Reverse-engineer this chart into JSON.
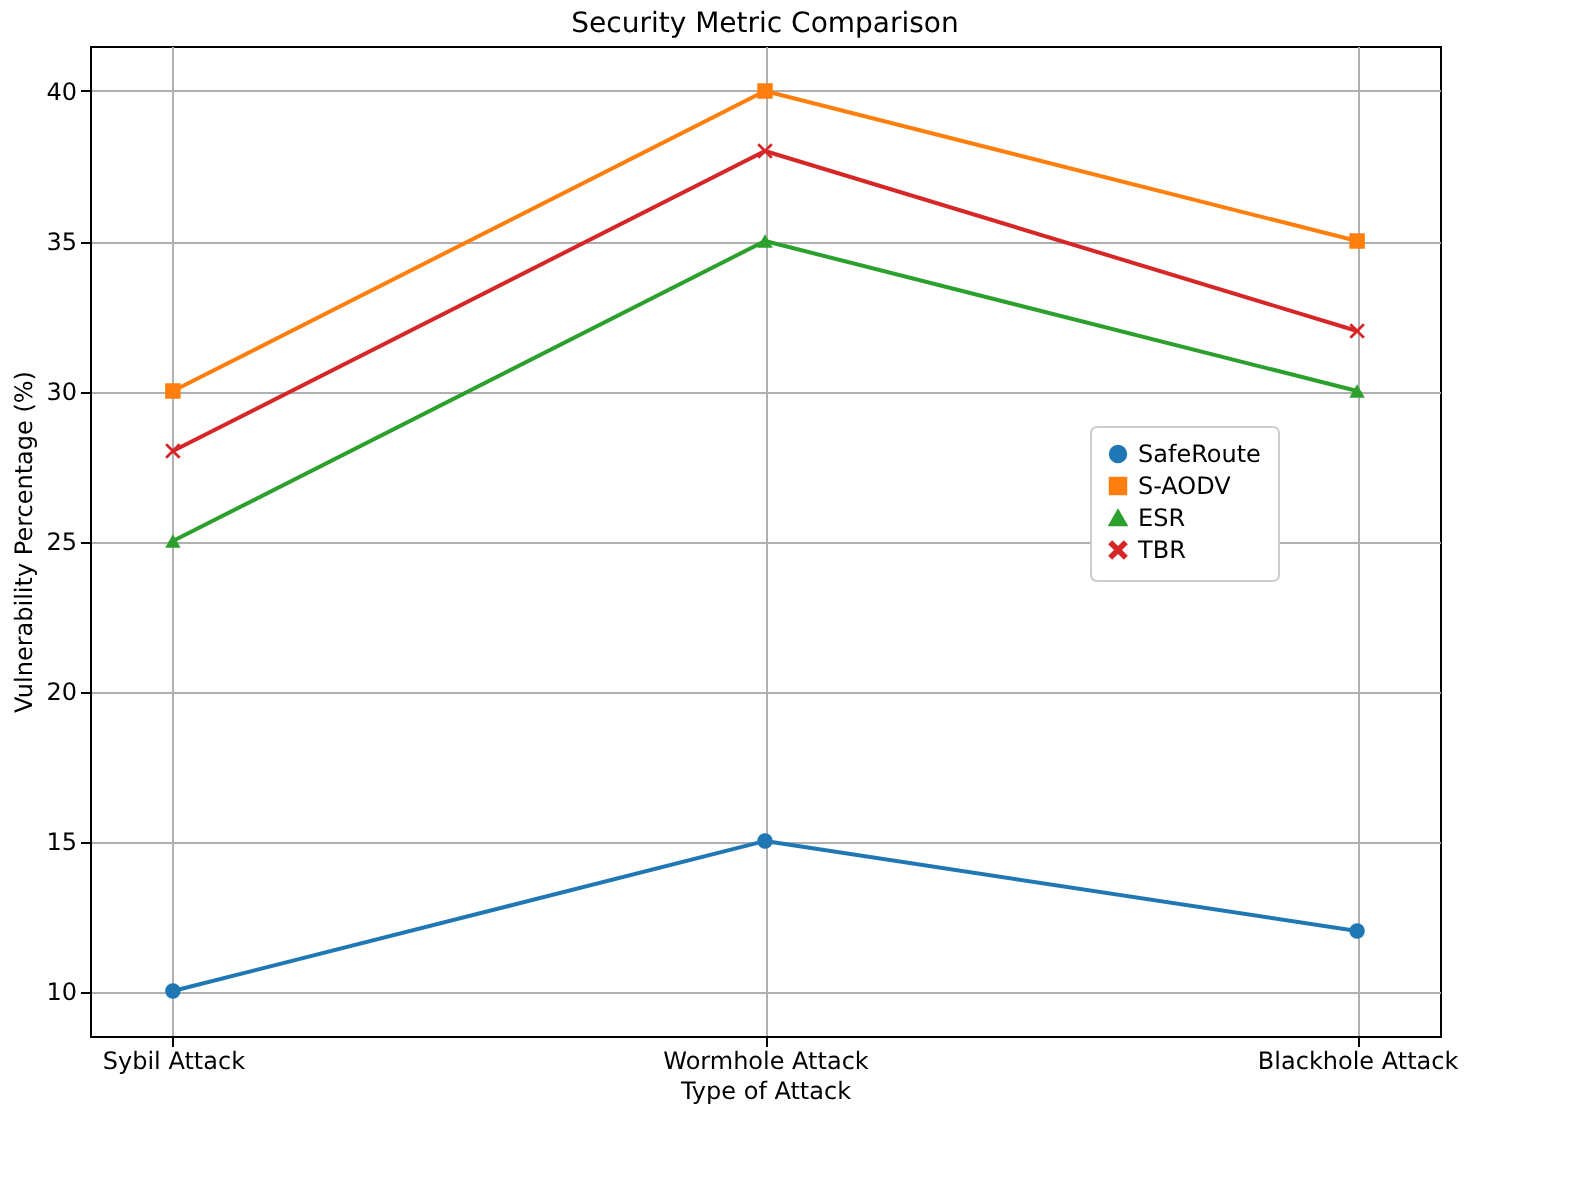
{
  "chart_data": {
    "type": "line",
    "title": "Security Metric Comparison",
    "xlabel": "Type of Attack",
    "ylabel": "Vulnerability Percentage (%)",
    "categories": [
      "Sybil Attack",
      "Wormhole Attack",
      "Blackhole Attack"
    ],
    "series": [
      {
        "name": "SafeRoute",
        "color": "#1f77b4",
        "marker": "circle",
        "values": [
          10,
          15,
          12
        ]
      },
      {
        "name": "S-AODV",
        "color": "#ff7f0e",
        "marker": "square",
        "values": [
          30,
          40,
          35
        ]
      },
      {
        "name": "ESR",
        "color": "#2ca02c",
        "marker": "triangle",
        "values": [
          25,
          35,
          30
        ]
      },
      {
        "name": "TBR",
        "color": "#d62728",
        "marker": "cross",
        "values": [
          28,
          38,
          32
        ]
      }
    ],
    "ylim": [
      8.5,
      41.5
    ],
    "yticks": [
      10,
      15,
      20,
      25,
      30,
      35,
      40
    ],
    "grid": true,
    "legend": "center right",
    "line_style": "solid"
  }
}
